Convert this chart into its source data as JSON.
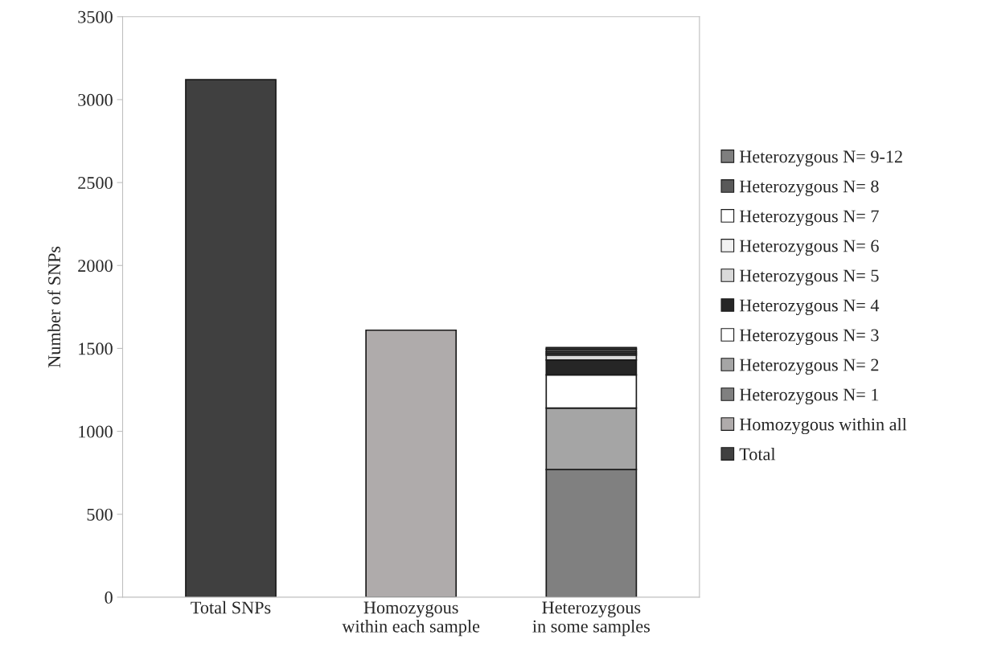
{
  "chart_data": {
    "type": "bar",
    "ylabel": "Number of SNPs",
    "categories": [
      "Total SNPs",
      "Homozygous\nwithin each sample",
      "Heterozygous\nin some samples"
    ],
    "stacked": true,
    "series": [
      {
        "name": "Total",
        "color": "#404040",
        "values": [
          3120,
          null,
          null
        ]
      },
      {
        "name": "Homozygous within all",
        "color": "#afabab",
        "values": [
          null,
          1610,
          null
        ]
      },
      {
        "name": "Heterozygous N= 1",
        "color": "#808080",
        "values": [
          null,
          null,
          770
        ]
      },
      {
        "name": "Heterozygous N= 2",
        "color": "#a5a5a5",
        "values": [
          null,
          null,
          370
        ]
      },
      {
        "name": "Heterozygous N= 3",
        "color": "#ffffff",
        "values": [
          null,
          null,
          200
        ]
      },
      {
        "name": "Heterozygous N= 4",
        "color": "#262626",
        "values": [
          null,
          null,
          90
        ]
      },
      {
        "name": "Heterozygous N= 5",
        "color": "#d9d9d9",
        "values": [
          null,
          null,
          30
        ]
      },
      {
        "name": "Heterozygous N= 6",
        "color": "#f2f2f2",
        "values": [
          null,
          null,
          10
        ]
      },
      {
        "name": "Heterozygous N= 7",
        "color": "#ffffff",
        "values": [
          null,
          null,
          10
        ]
      },
      {
        "name": "Heterozygous N= 8",
        "color": "#595959",
        "values": [
          null,
          null,
          15
        ]
      },
      {
        "name": "Heterozygous N= 9-12",
        "color": "#7f7f7f",
        "values": [
          null,
          null,
          10
        ]
      }
    ],
    "ylim": [
      0,
      3500
    ],
    "yticks": [
      0,
      500,
      1000,
      1500,
      2000,
      2500,
      3000,
      3500
    ],
    "grid": false,
    "legend": "right"
  }
}
